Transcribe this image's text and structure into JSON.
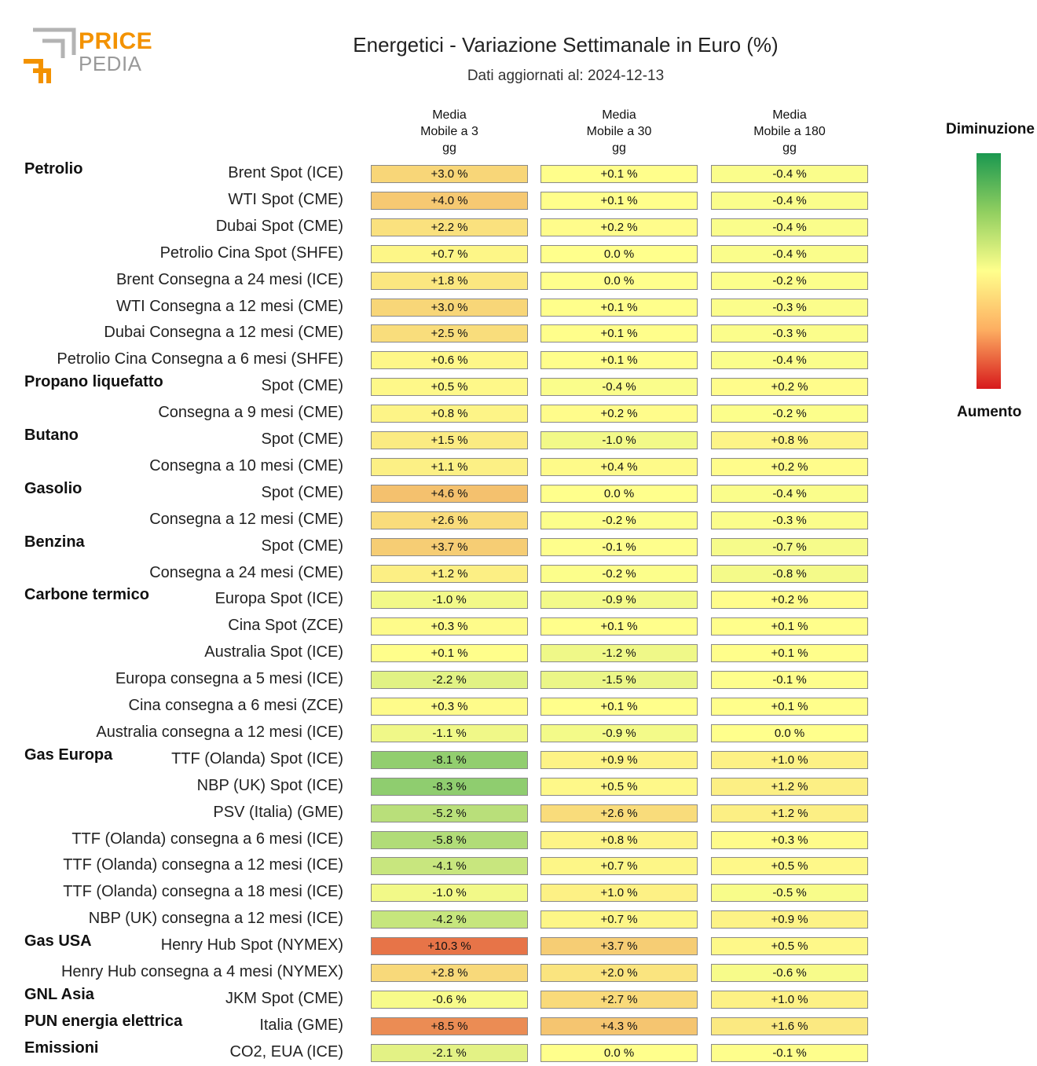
{
  "header": {
    "logo_top": "PRICE",
    "logo_bottom": "PEDIA",
    "title": "Energetici - Variazione Settimanale in Euro (%)",
    "subtitle": "Dati aggiornati al: 2024-12-13"
  },
  "legend": {
    "top_label": "Diminuzione",
    "bottom_label": "Aumento"
  },
  "chart_data": {
    "type": "table",
    "title": "Energetici - Variazione Settimanale in Euro (%)",
    "color_scale": {
      "low": "#1a9850",
      "mid": "#ffff8c",
      "high": "#d7191c"
    },
    "columns": [
      [
        "Media",
        "Mobile a 3",
        "gg"
      ],
      [
        "Media",
        "Mobile a 30",
        "gg"
      ],
      [
        "Media",
        "Mobile a 180",
        "gg"
      ]
    ],
    "rows": [
      {
        "group": "Petrolio",
        "label": "Brent Spot (ICE)",
        "values": [
          "+3.0 %",
          "+0.1 %",
          "-0.4 %"
        ]
      },
      {
        "group": "",
        "label": "WTI Spot (CME)",
        "values": [
          "+4.0 %",
          "+0.1 %",
          "-0.4 %"
        ]
      },
      {
        "group": "",
        "label": "Dubai Spot (CME)",
        "values": [
          "+2.2 %",
          "+0.2 %",
          "-0.4 %"
        ]
      },
      {
        "group": "",
        "label": "Petrolio Cina Spot (SHFE)",
        "values": [
          "+0.7 %",
          "0.0 %",
          "-0.4 %"
        ]
      },
      {
        "group": "",
        "label": "Brent Consegna a 24 mesi (ICE)",
        "values": [
          "+1.8 %",
          "0.0 %",
          "-0.2 %"
        ]
      },
      {
        "group": "",
        "label": "WTI Consegna a 12 mesi (CME)",
        "values": [
          "+3.0 %",
          "+0.1 %",
          "-0.3 %"
        ]
      },
      {
        "group": "",
        "label": "Dubai Consegna a 12 mesi (CME)",
        "values": [
          "+2.5 %",
          "+0.1 %",
          "-0.3 %"
        ]
      },
      {
        "group": "",
        "label": "Petrolio Cina Consegna a 6 mesi (SHFE)",
        "values": [
          "+0.6 %",
          "+0.1 %",
          "-0.4 %"
        ]
      },
      {
        "group": "Propano liquefatto",
        "label": "Spot (CME)",
        "values": [
          "+0.5 %",
          "-0.4 %",
          "+0.2 %"
        ]
      },
      {
        "group": "",
        "label": "Consegna a 9 mesi (CME)",
        "values": [
          "+0.8 %",
          "+0.2 %",
          "-0.2 %"
        ]
      },
      {
        "group": "Butano",
        "label": "Spot (CME)",
        "values": [
          "+1.5 %",
          "-1.0 %",
          "+0.8 %"
        ]
      },
      {
        "group": "",
        "label": "Consegna a 10 mesi (CME)",
        "values": [
          "+1.1 %",
          "+0.4 %",
          "+0.2 %"
        ]
      },
      {
        "group": "Gasolio",
        "label": "Spot (CME)",
        "values": [
          "+4.6 %",
          "0.0 %",
          "-0.4 %"
        ]
      },
      {
        "group": "",
        "label": "Consegna a 12 mesi (CME)",
        "values": [
          "+2.6 %",
          "-0.2 %",
          "-0.3 %"
        ]
      },
      {
        "group": "Benzina",
        "label": "Spot (CME)",
        "values": [
          "+3.7 %",
          "-0.1 %",
          "-0.7 %"
        ]
      },
      {
        "group": "",
        "label": "Consegna a 24 mesi (CME)",
        "values": [
          "+1.2 %",
          "-0.2 %",
          "-0.8 %"
        ]
      },
      {
        "group": "Carbone termico",
        "label": "Europa Spot (ICE)",
        "values": [
          "-1.0 %",
          "-0.9 %",
          "+0.2 %"
        ]
      },
      {
        "group": "",
        "label": "Cina Spot (ZCE)",
        "values": [
          "+0.3 %",
          "+0.1 %",
          "+0.1 %"
        ]
      },
      {
        "group": "",
        "label": "Australia Spot (ICE)",
        "values": [
          "+0.1 %",
          "-1.2 %",
          "+0.1 %"
        ]
      },
      {
        "group": "",
        "label": "Europa consegna a 5 mesi (ICE)",
        "values": [
          "-2.2 %",
          "-1.5 %",
          "-0.1 %"
        ]
      },
      {
        "group": "",
        "label": "Cina consegna a 6 mesi (ZCE)",
        "values": [
          "+0.3 %",
          "+0.1 %",
          "+0.1 %"
        ]
      },
      {
        "group": "",
        "label": "Australia consegna a 12 mesi (ICE)",
        "values": [
          "-1.1 %",
          "-0.9 %",
          "0.0 %"
        ]
      },
      {
        "group": "Gas Europa",
        "label": "TTF (Olanda) Spot (ICE)",
        "values": [
          "-8.1 %",
          "+0.9 %",
          "+1.0 %"
        ]
      },
      {
        "group": "",
        "label": "NBP (UK) Spot (ICE)",
        "values": [
          "-8.3 %",
          "+0.5 %",
          "+1.2 %"
        ]
      },
      {
        "group": "",
        "label": "PSV (Italia) (GME)",
        "values": [
          "-5.2 %",
          "+2.6 %",
          "+1.2 %"
        ]
      },
      {
        "group": "",
        "label": "TTF (Olanda) consegna a 6 mesi (ICE)",
        "values": [
          "-5.8 %",
          "+0.8 %",
          "+0.3 %"
        ]
      },
      {
        "group": "",
        "label": "TTF (Olanda) consegna a 12 mesi (ICE)",
        "values": [
          "-4.1 %",
          "+0.7 %",
          "+0.5 %"
        ]
      },
      {
        "group": "",
        "label": "TTF (Olanda) consegna a 18 mesi (ICE)",
        "values": [
          "-1.0 %",
          "+1.0 %",
          "-0.5 %"
        ]
      },
      {
        "group": "",
        "label": "NBP (UK) consegna a 12 mesi (ICE)",
        "values": [
          "-4.2 %",
          "+0.7 %",
          "+0.9 %"
        ]
      },
      {
        "group": "Gas USA",
        "label": "Henry Hub Spot (NYMEX)",
        "values": [
          "+10.3 %",
          "+3.7 %",
          "+0.5 %"
        ]
      },
      {
        "group": "",
        "label": "Henry Hub consegna a 4 mesi (NYMEX)",
        "values": [
          "+2.8 %",
          "+2.0 %",
          "-0.6 %"
        ]
      },
      {
        "group": "GNL Asia",
        "label": "JKM Spot (CME)",
        "values": [
          "-0.6 %",
          "+2.7 %",
          "+1.0 %"
        ]
      },
      {
        "group": "PUN energia elettrica",
        "label": "Italia (GME)",
        "values": [
          "+8.5 %",
          "+4.3 %",
          "+1.6 %"
        ]
      },
      {
        "group": "Emissioni",
        "label": "CO2, EUA (ICE)",
        "values": [
          "-2.1 %",
          "0.0 %",
          "-0.1 %"
        ]
      }
    ]
  }
}
